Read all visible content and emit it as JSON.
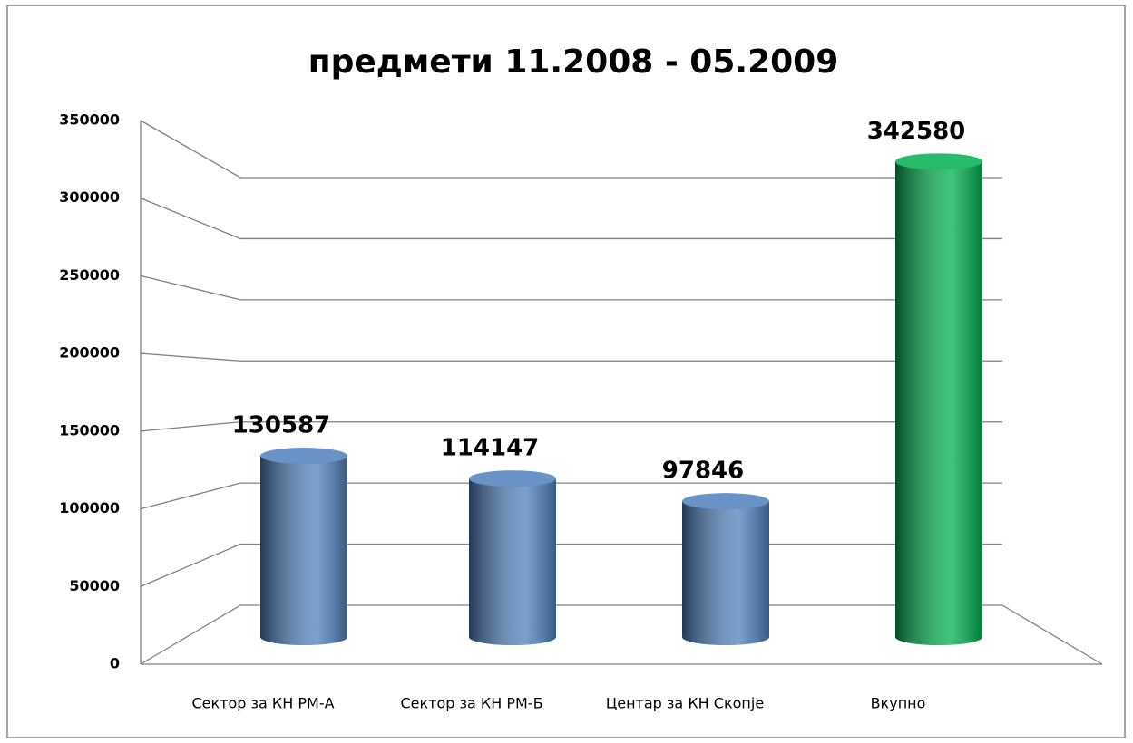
{
  "chart_data": {
    "type": "bar",
    "title": "предмети 11.2008 - 05.2009",
    "categories": [
      "Сектор за КН РМ-А",
      "Сектор за КН РМ-Б",
      "Центар за КН Скопје",
      "Вкупно"
    ],
    "values": [
      130587,
      114147,
      97846,
      342580
    ],
    "colors": [
      "#4f81bd",
      "#4f81bd",
      "#4f81bd",
      "#00b050"
    ],
    "ylim": [
      0,
      350000
    ],
    "yticks": [
      0,
      50000,
      100000,
      150000,
      200000,
      250000,
      300000,
      350000
    ],
    "grid": true
  }
}
